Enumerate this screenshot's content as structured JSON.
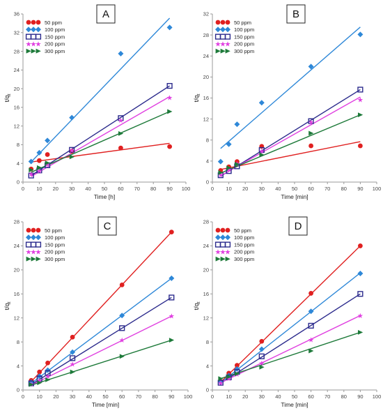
{
  "legend_labels": [
    "50 ppm",
    "100 ppm",
    "150 ppm",
    "200 ppm",
    "300 ppm"
  ],
  "series_colors": [
    "#e02020",
    "#2e88d8",
    "#2b2a8c",
    "#e040e0",
    "#1e7a3a"
  ],
  "series_markers": [
    "circle",
    "diamond",
    "square-open",
    "star",
    "triangle-right"
  ],
  "chart_data": [
    {
      "type": "scatter",
      "panel_label": "A",
      "xlabel": "Time [h]",
      "ylabel": "t/qt",
      "xlim": [
        0,
        100
      ],
      "ylim": [
        0,
        36
      ],
      "xticks": [
        0,
        10,
        20,
        30,
        40,
        50,
        60,
        70,
        80,
        90,
        100
      ],
      "yticks": [
        0,
        4,
        8,
        12,
        16,
        20,
        24,
        28,
        32,
        36
      ],
      "legend_position": "top-left",
      "grid": false,
      "series": [
        {
          "name": "50 ppm",
          "x": [
            5,
            10,
            15,
            30,
            60,
            90
          ],
          "y": [
            2.8,
            4.6,
            5.9,
            6.6,
            7.3,
            7.6
          ],
          "fit": [
            [
              5,
              4.3
            ],
            [
              90,
              8.3
            ]
          ]
        },
        {
          "name": "100 ppm",
          "x": [
            5,
            10,
            15,
            30,
            60,
            90
          ],
          "y": [
            4.4,
            6.3,
            8.9,
            13.8,
            27.5,
            33.1
          ],
          "fit": [
            [
              5,
              4.3
            ],
            [
              90,
              35.1
            ]
          ]
        },
        {
          "name": "150 ppm",
          "x": [
            5,
            10,
            15,
            30,
            60,
            90
          ],
          "y": [
            1.4,
            2.5,
            3.6,
            6.9,
            13.7,
            20.6
          ],
          "fit": [
            [
              5,
              1.4
            ],
            [
              90,
              20.6
            ]
          ]
        },
        {
          "name": "200 ppm",
          "x": [
            5,
            10,
            15,
            30,
            60,
            90
          ],
          "y": [
            1.7,
            2.4,
            3.8,
            6.8,
            13.2,
            18.1
          ],
          "fit": [
            [
              5,
              1.2
            ],
            [
              90,
              18.3
            ]
          ]
        },
        {
          "name": "300 ppm",
          "x": [
            5,
            10,
            15,
            30,
            60,
            90
          ],
          "y": [
            2.6,
            3.1,
            4.1,
            5.4,
            10.4,
            15.1
          ],
          "fit": [
            [
              5,
              2.1
            ],
            [
              90,
              15.1
            ]
          ]
        }
      ]
    },
    {
      "type": "scatter",
      "panel_label": "B",
      "xlabel": "Time [min]",
      "ylabel": "t/qt",
      "xlim": [
        0,
        100
      ],
      "ylim": [
        0,
        32
      ],
      "xticks": [
        0,
        10,
        20,
        30,
        40,
        50,
        60,
        70,
        80,
        90,
        100
      ],
      "yticks": [
        0,
        4,
        8,
        12,
        16,
        20,
        24,
        28,
        32
      ],
      "legend_position": "top-left",
      "grid": false,
      "series": [
        {
          "name": "50 ppm",
          "x": [
            5,
            10,
            15,
            30,
            60,
            90
          ],
          "y": [
            2.2,
            2.9,
            3.9,
            6.8,
            6.9,
            6.9
          ],
          "fit": [
            [
              5,
              2.4
            ],
            [
              90,
              7.7
            ]
          ]
        },
        {
          "name": "100 ppm",
          "x": [
            5,
            10,
            15,
            30,
            60,
            90
          ],
          "y": [
            3.9,
            7.2,
            11.0,
            15.1,
            22.0,
            28.1
          ],
          "fit": [
            [
              5,
              6.4
            ],
            [
              90,
              29.5
            ]
          ]
        },
        {
          "name": "150 ppm",
          "x": [
            5,
            10,
            15,
            30,
            60,
            90
          ],
          "y": [
            1.3,
            2.1,
            3.0,
            6.1,
            11.6,
            17.6
          ],
          "fit": [
            [
              5,
              1.1
            ],
            [
              90,
              17.6
            ]
          ]
        },
        {
          "name": "200 ppm",
          "x": [
            5,
            10,
            15,
            30,
            60,
            90
          ],
          "y": [
            1.4,
            2.4,
            3.5,
            5.9,
            11.4,
            15.7
          ],
          "fit": [
            [
              5,
              1.2
            ],
            [
              90,
              16.2
            ]
          ]
        },
        {
          "name": "300 ppm",
          "x": [
            5,
            10,
            15,
            30,
            60,
            90
          ],
          "y": [
            1.8,
            2.7,
            3.4,
            5.2,
            9.3,
            12.8
          ],
          "fit": [
            [
              5,
              1.7
            ],
            [
              90,
              12.8
            ]
          ]
        }
      ]
    },
    {
      "type": "scatter",
      "panel_label": "C",
      "xlabel": "Time [min]",
      "ylabel": "t/qt",
      "xlim": [
        0,
        100
      ],
      "ylim": [
        0,
        28
      ],
      "xticks": [
        0,
        10,
        20,
        30,
        40,
        50,
        60,
        70,
        80,
        90,
        100
      ],
      "yticks": [
        0,
        4,
        8,
        12,
        16,
        20,
        24,
        28
      ],
      "legend_position": "top-left",
      "grid": false,
      "series": [
        {
          "name": "50 ppm",
          "x": [
            5,
            10,
            15,
            30,
            60,
            90
          ],
          "y": [
            1.6,
            3.0,
            4.5,
            8.8,
            17.5,
            26.3
          ],
          "fit": [
            [
              5,
              1.4
            ],
            [
              90,
              26.3
            ]
          ]
        },
        {
          "name": "100 ppm",
          "x": [
            5,
            10,
            15,
            30,
            60,
            90
          ],
          "y": [
            1.3,
            2.3,
            3.3,
            6.3,
            12.4,
            18.6
          ],
          "fit": [
            [
              5,
              1.1
            ],
            [
              90,
              18.6
            ]
          ]
        },
        {
          "name": "150 ppm",
          "x": [
            5,
            10,
            15,
            30,
            60,
            90
          ],
          "y": [
            1.1,
            1.9,
            2.8,
            5.3,
            10.3,
            15.4
          ],
          "fit": [
            [
              5,
              0.9
            ],
            [
              90,
              15.4
            ]
          ]
        },
        {
          "name": "200 ppm",
          "x": [
            5,
            10,
            15,
            30,
            60,
            90
          ],
          "y": [
            1.0,
            1.6,
            2.3,
            4.3,
            8.3,
            12.3
          ],
          "fit": [
            [
              5,
              0.8
            ],
            [
              90,
              12.3
            ]
          ]
        },
        {
          "name": "300 ppm",
          "x": [
            5,
            10,
            15,
            30,
            60,
            90
          ],
          "y": [
            0.9,
            1.2,
            1.7,
            3.0,
            5.6,
            8.3
          ],
          "fit": [
            [
              5,
              0.8
            ],
            [
              90,
              8.3
            ]
          ]
        }
      ]
    },
    {
      "type": "scatter",
      "panel_label": "D",
      "xlabel": "Time [min]",
      "ylabel": "t/qt",
      "xlim": [
        0,
        100
      ],
      "ylim": [
        0,
        28
      ],
      "xticks": [
        0,
        10,
        20,
        30,
        40,
        50,
        60,
        70,
        80,
        90,
        100
      ],
      "yticks": [
        0,
        4,
        8,
        12,
        16,
        20,
        24,
        28
      ],
      "legend_position": "top-left",
      "grid": false,
      "series": [
        {
          "name": "50 ppm",
          "x": [
            5,
            10,
            15,
            30,
            60,
            90
          ],
          "y": [
            1.4,
            2.8,
            4.1,
            8.1,
            16.1,
            24.0
          ],
          "fit": [
            [
              5,
              1.3
            ],
            [
              90,
              24.0
            ]
          ]
        },
        {
          "name": "100 ppm",
          "x": [
            5,
            10,
            15,
            30,
            60,
            90
          ],
          "y": [
            1.3,
            2.4,
            3.5,
            6.8,
            13.1,
            19.4
          ],
          "fit": [
            [
              5,
              1.2
            ],
            [
              90,
              19.5
            ]
          ]
        },
        {
          "name": "150 ppm",
          "x": [
            5,
            10,
            15,
            30,
            60,
            90
          ],
          "y": [
            1.2,
            2.1,
            3.0,
            5.6,
            10.7,
            16.0
          ],
          "fit": [
            [
              5,
              1.1
            ],
            [
              90,
              16.0
            ]
          ]
        },
        {
          "name": "200 ppm",
          "x": [
            5,
            10,
            15,
            30,
            60,
            90
          ],
          "y": [
            1.2,
            1.9,
            2.6,
            4.5,
            8.4,
            12.4
          ],
          "fit": [
            [
              5,
              1.2
            ],
            [
              90,
              12.4
            ]
          ]
        },
        {
          "name": "300 ppm",
          "x": [
            5,
            10,
            15,
            30,
            60,
            90
          ],
          "y": [
            1.9,
            2.2,
            2.7,
            3.8,
            6.5,
            9.6
          ],
          "fit": [
            [
              5,
              1.9
            ],
            [
              90,
              9.6
            ]
          ]
        }
      ]
    }
  ]
}
